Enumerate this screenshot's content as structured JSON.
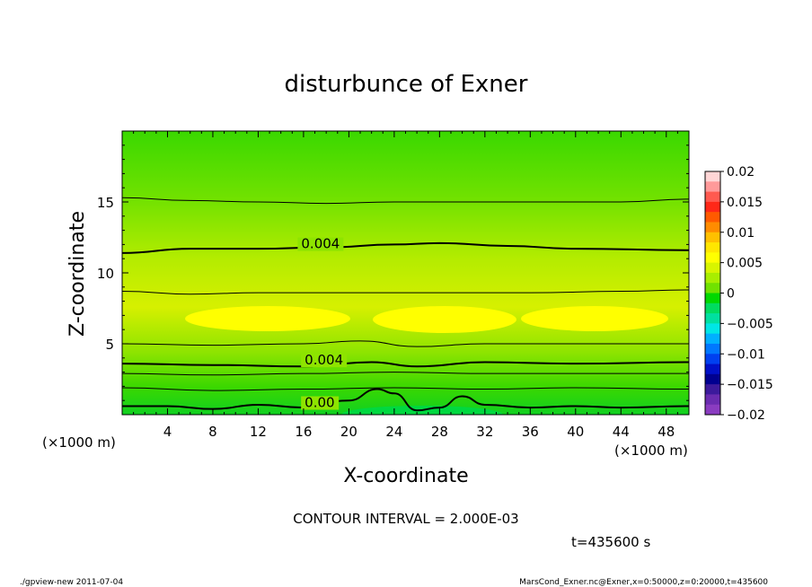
{
  "chart_data": {
    "type": "contour",
    "title": "disturbunce of Exner",
    "xlabel": "X-coordinate",
    "ylabel": "Z-coordinate",
    "x_unit": "(×1000 m)",
    "y_unit": "(×1000 m)",
    "xlim": [
      0,
      50
    ],
    "ylim": [
      0,
      20
    ],
    "x_ticks": [
      4,
      8,
      12,
      16,
      20,
      24,
      28,
      32,
      36,
      40,
      44,
      48
    ],
    "y_ticks": [
      5,
      10,
      15
    ],
    "contour_interval_text": "CONTOUR INTERVAL = 2.000E-03",
    "time_text": "t=435600 s",
    "contour_labels": [
      {
        "text": "0.004",
        "x": 15.8,
        "z": 11.8
      },
      {
        "text": "0.004",
        "x": 16.1,
        "z": 3.6
      },
      {
        "text": "0.00",
        "x": 16.1,
        "z": 0.6
      }
    ],
    "contour_lines": [
      {
        "level": 0.0,
        "points": [
          [
            0,
            0.6
          ],
          [
            4,
            0.6
          ],
          [
            8,
            0.4
          ],
          [
            12,
            0.7
          ],
          [
            16,
            0.5
          ],
          [
            20,
            1.0
          ],
          [
            22.5,
            1.8
          ],
          [
            24,
            1.5
          ],
          [
            26,
            0.3
          ],
          [
            28,
            0.5
          ],
          [
            30,
            1.3
          ],
          [
            32,
            0.7
          ],
          [
            36,
            0.5
          ],
          [
            40,
            0.6
          ],
          [
            44,
            0.5
          ],
          [
            50,
            0.6
          ]
        ]
      },
      {
        "level": 0.002,
        "points": [
          [
            0,
            1.9
          ],
          [
            8,
            1.7
          ],
          [
            16,
            1.8
          ],
          [
            24,
            1.9
          ],
          [
            32,
            1.8
          ],
          [
            40,
            1.9
          ],
          [
            50,
            1.8
          ]
        ]
      },
      {
        "level": 0.003,
        "points": [
          [
            0,
            2.9
          ],
          [
            8,
            2.8
          ],
          [
            16,
            2.9
          ],
          [
            24,
            3.0
          ],
          [
            32,
            2.9
          ],
          [
            40,
            2.9
          ],
          [
            50,
            2.9
          ]
        ]
      },
      {
        "level": 0.004,
        "points": [
          [
            0,
            3.6
          ],
          [
            8,
            3.5
          ],
          [
            16,
            3.4
          ],
          [
            22,
            3.7
          ],
          [
            26,
            3.4
          ],
          [
            32,
            3.7
          ],
          [
            40,
            3.6
          ],
          [
            50,
            3.7
          ]
        ]
      },
      {
        "level": 0.005,
        "points": [
          [
            0,
            5.0
          ],
          [
            8,
            4.9
          ],
          [
            16,
            5.0
          ],
          [
            21,
            5.2
          ],
          [
            26,
            4.8
          ],
          [
            32,
            5.0
          ],
          [
            40,
            5.0
          ],
          [
            50,
            5.0
          ]
        ]
      },
      {
        "level": 0.005,
        "points": [
          [
            0,
            8.7
          ],
          [
            6,
            8.5
          ],
          [
            12,
            8.6
          ],
          [
            18,
            8.6
          ],
          [
            24,
            8.6
          ],
          [
            30,
            8.6
          ],
          [
            36,
            8.6
          ],
          [
            44,
            8.7
          ],
          [
            50,
            8.8
          ]
        ]
      },
      {
        "level": 0.004,
        "points": [
          [
            0,
            11.4
          ],
          [
            6,
            11.7
          ],
          [
            12,
            11.7
          ],
          [
            18,
            11.8
          ],
          [
            24,
            12.0
          ],
          [
            28,
            12.1
          ],
          [
            34,
            11.9
          ],
          [
            40,
            11.7
          ],
          [
            50,
            11.6
          ]
        ]
      },
      {
        "level": 0.003,
        "points": [
          [
            0,
            15.3
          ],
          [
            6,
            15.1
          ],
          [
            12,
            15.0
          ],
          [
            18,
            14.9
          ],
          [
            24,
            15.0
          ],
          [
            30,
            15.0
          ],
          [
            36,
            15.0
          ],
          [
            44,
            15.0
          ],
          [
            50,
            15.2
          ]
        ]
      }
    ],
    "colorbar": {
      "tick_labels": [
        "0.02",
        "0.015",
        "0.01",
        "0.005",
        "0",
        "−0.005",
        "−0.01",
        "−0.015",
        "−0.02"
      ],
      "colors": [
        "#ffd6d6",
        "#ff9a9a",
        "#ff5a50",
        "#ff2818",
        "#ff5a00",
        "#ff8c00",
        "#ffc000",
        "#ffe600",
        "#ffff00",
        "#d8f500",
        "#a8ee00",
        "#70e200",
        "#00d800",
        "#00dc60",
        "#00e0a0",
        "#00e6e6",
        "#00b0ff",
        "#0078ff",
        "#0040f0",
        "#0010c8",
        "#000090",
        "#3c1a9c",
        "#6a2cb0",
        "#8a3cc0"
      ]
    }
  },
  "footer": {
    "left": "./gpview-new   2011-07-04",
    "right": "MarsCond_Exner.nc@Exner,x=0:50000,z=0:20000,t=435600"
  }
}
